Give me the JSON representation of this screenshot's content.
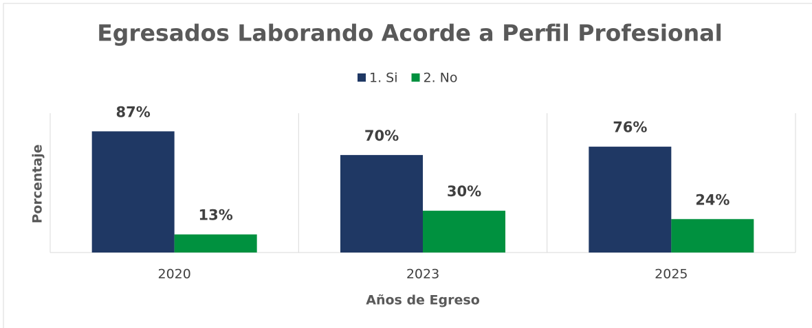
{
  "chart_data": {
    "type": "bar",
    "title": "Egresados Laborando Acorde a Perfil Profesional",
    "x_label": "Años de Egreso",
    "y_label": "Porcentaje",
    "categories": [
      "2020",
      "2023",
      "2025"
    ],
    "series": [
      {
        "name": "1. Si",
        "color": "#1f3864",
        "values": [
          87,
          70,
          76
        ],
        "value_labels": [
          "87%",
          "70%",
          "76%"
        ]
      },
      {
        "name": "2. No",
        "color": "#00913f",
        "values": [
          13,
          30,
          24
        ],
        "value_labels": [
          "13%",
          "30%",
          "24%"
        ]
      }
    ],
    "ylim": [
      0,
      100
    ],
    "legend": "top"
  }
}
